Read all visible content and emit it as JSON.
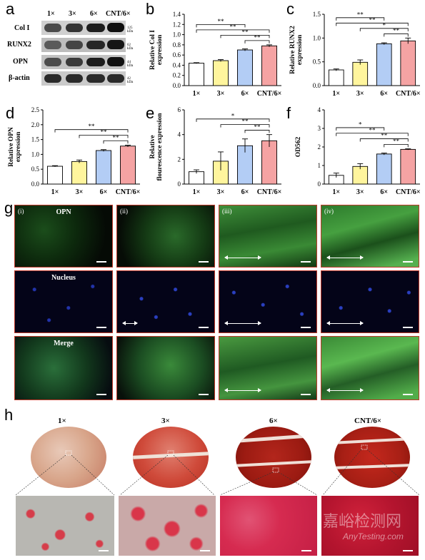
{
  "panels": {
    "a": "a",
    "b": "b",
    "c": "c",
    "d": "d",
    "e": "e",
    "f": "f",
    "g": "g",
    "h": "h"
  },
  "western": {
    "lanes": [
      "1×",
      "3×",
      "6×",
      "CNT/6×"
    ],
    "proteins": [
      "Col I",
      "RUNX2",
      "OPN",
      "β-actin"
    ],
    "kda": [
      "125 kDa",
      "62 kDa",
      "44 kDa",
      "42 kDa"
    ]
  },
  "bar_colors": [
    "#ffffff",
    "#fff59d",
    "#b3cdf5",
    "#f5a3a3"
  ],
  "chart_data": [
    {
      "type": "bar",
      "id": "b",
      "categories": [
        "1×",
        "3×",
        "6×",
        "CNT/6×"
      ],
      "values": [
        0.44,
        0.49,
        0.7,
        0.78
      ],
      "errors": [
        0.01,
        0.02,
        0.02,
        0.02
      ],
      "ylabel": "Relative Col I\nexpression",
      "ylim": [
        0,
        1.4
      ],
      "yticks": [
        "0.0",
        "0.2",
        "0.4",
        "0.6",
        "0.8",
        "1.0",
        "1.2",
        "1.4"
      ],
      "sig": [
        "**",
        "**",
        "**",
        "**"
      ]
    },
    {
      "type": "bar",
      "id": "c",
      "categories": [
        "1×",
        "3×",
        "6×",
        "CNT/6×"
      ],
      "values": [
        0.33,
        0.49,
        0.88,
        0.94
      ],
      "errors": [
        0.02,
        0.05,
        0.02,
        0.06
      ],
      "ylabel": "Relative RUNX2\nexpression",
      "ylim": [
        0,
        1.5
      ],
      "yticks": [
        "0.0",
        "0.5",
        "1.0",
        "1.5"
      ],
      "sig": [
        "**",
        "*",
        "**",
        "**"
      ]
    },
    {
      "type": "bar",
      "id": "d",
      "categories": [
        "1×",
        "3×",
        "6×",
        "CNT/6×"
      ],
      "values": [
        0.6,
        0.76,
        1.13,
        1.28
      ],
      "errors": [
        0.02,
        0.05,
        0.03,
        0.03
      ],
      "ylabel": "Relative OPN\nexpression",
      "ylim": [
        0,
        2.5
      ],
      "yticks": [
        "0.0",
        "0.5",
        "1.0",
        "1.5",
        "2.0",
        "2.5"
      ],
      "sig": [
        "**",
        "**",
        "**"
      ]
    },
    {
      "type": "bar",
      "id": "e",
      "categories": [
        "1×",
        "3×",
        "6×",
        "CNT/6×"
      ],
      "values": [
        1.0,
        1.85,
        3.1,
        3.5
      ],
      "errors": [
        0.15,
        0.75,
        0.55,
        0.5
      ],
      "ylabel": "Relative\nflourescence expression",
      "ylim": [
        0,
        6
      ],
      "yticks": [
        "0",
        "2",
        "4",
        "6"
      ],
      "sig": [
        "**",
        "**",
        "*"
      ]
    },
    {
      "type": "bar",
      "id": "f",
      "categories": [
        "1×",
        "3×",
        "6×",
        "CNT/6×"
      ],
      "values": [
        0.47,
        0.95,
        1.62,
        1.87
      ],
      "errors": [
        0.12,
        0.15,
        0.05,
        0.03
      ],
      "ylabel": "OD562",
      "ylim": [
        0,
        4
      ],
      "yticks": [
        "0",
        "1",
        "2",
        "3",
        "4"
      ],
      "sig": [
        "**",
        "**",
        "**",
        "*"
      ]
    }
  ],
  "microscopy": {
    "columns": [
      "(i)",
      "(ii)",
      "(iii)",
      "(iv)"
    ],
    "rows": [
      "OPN",
      "Nucleus",
      "Merge"
    ]
  },
  "staining": {
    "groups": [
      "1×",
      "3×",
      "6×",
      "CNT/6×"
    ]
  },
  "watermark": {
    "cn": "嘉峪检测网",
    "en": "AnyTesting.com"
  }
}
